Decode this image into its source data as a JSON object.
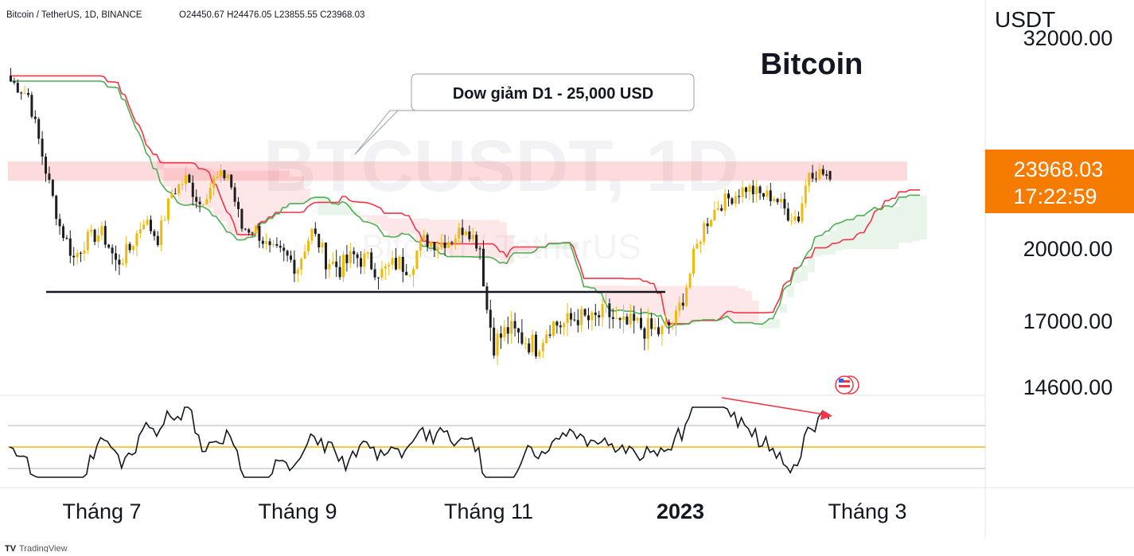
{
  "header": {
    "symbol": "Bitcoin / TetherUS, 1D, BINANCE",
    "ohlc": "O24450.67  H24476.05  L23855.55  C23968.03"
  },
  "watermark": {
    "symbol": "BTCUSDT, 1D",
    "name": "Bitcoin / TetherUS"
  },
  "annotation": {
    "title": "Bitcoin",
    "callout": "Dow giảm D1 - 25,000 USD"
  },
  "price_axis": {
    "unit": "USDT",
    "ticks": [
      "32000.00",
      "20000.00",
      "17000.00",
      "14600.00"
    ],
    "last_price": "23968.03",
    "countdown": "17:22:59"
  },
  "time_axis": {
    "ticks": [
      "Tháng 7",
      "Tháng 9",
      "Tháng 11",
      "2023",
      "Tháng 3"
    ]
  },
  "footer": {
    "brand": "TradingView"
  },
  "colors": {
    "bull": "#f0b90b",
    "bear": "#1e1e1e",
    "kijun": "#f23645",
    "span": "#4caf50",
    "cloud_bear": "rgba(242,54,69,0.12)",
    "cloud_bull": "rgba(76,175,80,0.12)",
    "resistance_zone": "rgba(242,54,69,0.18)",
    "label_bg": "#f57c00",
    "rsi_mid": "#f0b90b"
  },
  "chart_data": {
    "type": "candlestick",
    "symbol": "BTCUSDT",
    "interval": "1D",
    "last_candle": {
      "open": 24450.67,
      "high": 24476.05,
      "low": 23855.55,
      "close": 23968.03
    },
    "price_scale_ticks": [
      32000,
      20000,
      17000,
      14600
    ],
    "support_level": 18300,
    "resistance_zone": [
      23900,
      25000
    ],
    "close_path": [
      [
        0,
        29600
      ],
      [
        5,
        28800
      ],
      [
        10,
        24500
      ],
      [
        14,
        21300
      ],
      [
        18,
        19600
      ],
      [
        22,
        20600
      ],
      [
        26,
        20900
      ],
      [
        30,
        19400
      ],
      [
        34,
        20000
      ],
      [
        38,
        21700
      ],
      [
        42,
        20600
      ],
      [
        46,
        23200
      ],
      [
        50,
        24000
      ],
      [
        54,
        22600
      ],
      [
        58,
        23900
      ],
      [
        62,
        24300
      ],
      [
        66,
        21200
      ],
      [
        70,
        21100
      ],
      [
        74,
        19900
      ],
      [
        78,
        19700
      ],
      [
        82,
        19300
      ],
      [
        86,
        21000
      ],
      [
        90,
        19600
      ],
      [
        94,
        19200
      ],
      [
        98,
        19700
      ],
      [
        102,
        19500
      ],
      [
        106,
        19000
      ],
      [
        110,
        19400
      ],
      [
        114,
        19300
      ],
      [
        118,
        20500
      ],
      [
        122,
        20300
      ],
      [
        126,
        20600
      ],
      [
        130,
        21300
      ],
      [
        134,
        20100
      ],
      [
        136,
        17500
      ],
      [
        138,
        16200
      ],
      [
        142,
        16700
      ],
      [
        146,
        16400
      ],
      [
        150,
        16100
      ],
      [
        154,
        16900
      ],
      [
        158,
        16900
      ],
      [
        162,
        17200
      ],
      [
        166,
        17000
      ],
      [
        170,
        17400
      ],
      [
        174,
        16800
      ],
      [
        178,
        16900
      ],
      [
        182,
        16700
      ],
      [
        186,
        16600
      ],
      [
        190,
        17100
      ],
      [
        194,
        19000
      ],
      [
        198,
        21300
      ],
      [
        202,
        22500
      ],
      [
        206,
        23000
      ],
      [
        210,
        23500
      ],
      [
        214,
        23100
      ],
      [
        218,
        23000
      ],
      [
        222,
        22000
      ],
      [
        225,
        21800
      ],
      [
        228,
        24500
      ],
      [
        232,
        24300
      ],
      [
        234,
        23968.03
      ]
    ],
    "indicators": {
      "ichimoku": {
        "kijun_color": "red",
        "span_color": "green"
      },
      "rsi": {
        "levels": [
          "upper",
          "middle",
          "lower"
        ],
        "divergence_arrow": "bearish"
      }
    }
  }
}
